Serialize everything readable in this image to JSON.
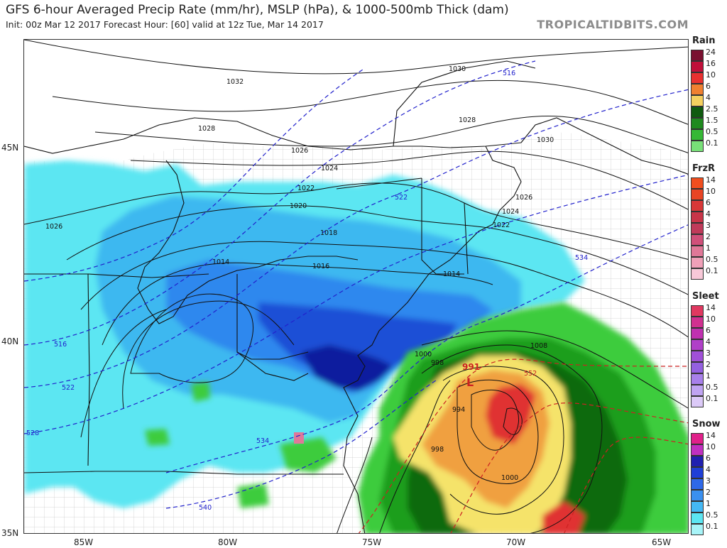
{
  "header": {
    "title": "GFS 6-hour Averaged Precip Rate (mm/hr), MSLP (hPa), & 1000-500mb Thick (dam)",
    "subtitle": "Init: 00z Mar 12 2017   Forecast Hour: [60]   valid at 12z Tue, Mar 14 2017",
    "brand": "TROPICALTIDBITS.COM"
  },
  "axes": {
    "longitude_labels": [
      "85W",
      "80W",
      "75W",
      "70W",
      "65W"
    ],
    "latitude_labels": [
      "45N",
      "40N",
      "35N"
    ]
  },
  "map": {
    "low_center_label": "991",
    "low_symbol": "L",
    "isobar_labels": [
      "1032",
      "1030",
      "1028",
      "1028",
      "1030",
      "1026",
      "1026",
      "1024",
      "1024",
      "1022",
      "1022",
      "1020",
      "1018",
      "1016",
      "1014",
      "1014",
      "1026",
      "1008",
      "1000",
      "998",
      "994",
      "998",
      "1000"
    ],
    "thickness_labels": [
      "516",
      "522",
      "528",
      "534",
      "540",
      "552",
      "516",
      "522",
      "534"
    ],
    "colors": {
      "snow_light": "#5ce6f2",
      "snow_mid": "#2f9df0",
      "snow_heavy": "#1f3fd6",
      "snow_deep": "#0f1a9e",
      "rain_light": "#3ecc3e",
      "rain_mid": "#1f9e1f",
      "rain_dark": "#0f6a0f",
      "rain_yellow": "#f5e36a",
      "rain_orange": "#f0a040",
      "rain_red": "#e03030",
      "isobar": "#111111",
      "thickness_cold": "#2222cc",
      "thickness_warm": "#cc2222",
      "coast": "#111111",
      "county": "#9a9a9a"
    }
  },
  "legend": {
    "rain": {
      "title": "Rain",
      "labels": [
        "24",
        "16",
        "10",
        "6",
        "4",
        "2.5",
        "1.5",
        "0.5",
        "0.1"
      ],
      "colors": [
        "#7a1030",
        "#c0103a",
        "#e83030",
        "#f08030",
        "#f5d060",
        "#0f5a0f",
        "#1f8a1f",
        "#36b836",
        "#78e078"
      ]
    },
    "frzr": {
      "title": "FrzR",
      "labels": [
        "14",
        "10",
        "6",
        "4",
        "3",
        "2",
        "1",
        "0.5",
        "0.1"
      ],
      "colors": [
        "#f04e1f",
        "#e84424",
        "#d83838",
        "#c83448",
        "#c03a5a",
        "#d0507a",
        "#e07898",
        "#f0a0b8",
        "#f8c8d8"
      ]
    },
    "sleet": {
      "title": "Sleet",
      "labels": [
        "14",
        "10",
        "6",
        "4",
        "3",
        "2",
        "1",
        "0.5",
        "0.1"
      ],
      "colors": [
        "#e03860",
        "#d03090",
        "#c030b0",
        "#b040c8",
        "#a050d8",
        "#9460e0",
        "#a880ea",
        "#c0a4f2",
        "#dccaf8"
      ]
    },
    "snow": {
      "title": "Snow",
      "labels": [
        "14",
        "10",
        "6",
        "4",
        "3",
        "2",
        "1",
        "0.5",
        "0.1"
      ],
      "colors": [
        "#e0208a",
        "#c030c0",
        "#2020b0",
        "#1f3fd6",
        "#2e68e8",
        "#3a90f0",
        "#44b8f4",
        "#5ce6f2",
        "#a8f4f8"
      ]
    }
  }
}
